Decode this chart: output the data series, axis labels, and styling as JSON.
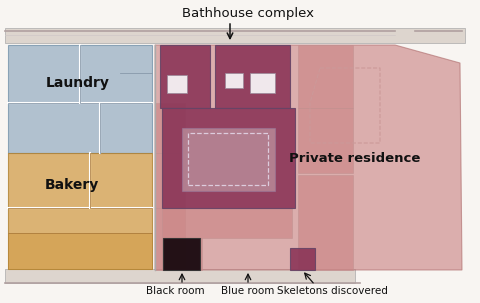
{
  "bg_color": "#f8f5f2",
  "laundry_color": "#9ab0c4",
  "bakery_color": "#d4a355",
  "bathhouse_color": "#8b3558",
  "residence_color": "#cc8888",
  "wall_color": "#c0b0b0",
  "wall_bg": "#e8ddd8",
  "outer_bg": "#f0ebe8",
  "laundry_label": "Laundry",
  "bakery_label": "Bakery",
  "residence_label": "Private residence",
  "bathhouse_label": "Bathhouse complex",
  "black_room_label": "Black room",
  "blue_room_label": "Blue room",
  "skeleton_label": "Skeletons discovered"
}
